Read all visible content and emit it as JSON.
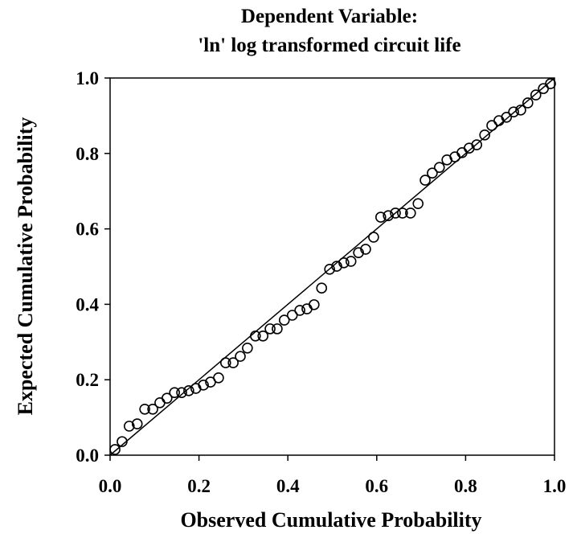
{
  "chart_data": {
    "type": "scatter",
    "title": [
      "Dependent Variable:",
      "'ln' log transformed circuit life"
    ],
    "x_label": "Observed Cumulative Probability",
    "y_label": "Expected Cumulative Probability",
    "xlim": [
      0,
      1
    ],
    "ylim": [
      0,
      1
    ],
    "xticks": [
      {
        "value": 0,
        "label": "0.0"
      },
      0.2,
      0.4,
      0.6,
      0.8,
      {
        "value": 1,
        "label": "1.0"
      }
    ],
    "yticks": [
      {
        "value": 0,
        "label": "0.0"
      },
      0.2,
      0.4,
      0.6,
      0.8,
      {
        "value": 1,
        "label": "1.0"
      }
    ],
    "grid": false,
    "reference_line": true,
    "series": [
      {
        "color": "#000000",
        "x": [
          0.011,
          0.027,
          0.043,
          0.061,
          0.078,
          0.096,
          0.112,
          0.128,
          0.145,
          0.161,
          0.177,
          0.193,
          0.21,
          0.226,
          0.244,
          0.26,
          0.277,
          0.293,
          0.309,
          0.327,
          0.344,
          0.36,
          0.376,
          0.392,
          0.41,
          0.427,
          0.443,
          0.459,
          0.476,
          0.494,
          0.51,
          0.526,
          0.542,
          0.559,
          0.575,
          0.593,
          0.609,
          0.626,
          0.642,
          0.658,
          0.676,
          0.693,
          0.709,
          0.725,
          0.741,
          0.758,
          0.776,
          0.792,
          0.808,
          0.825,
          0.843,
          0.859,
          0.875,
          0.892,
          0.908,
          0.924,
          0.94,
          0.958,
          0.975,
          0.991
        ],
        "values": [
          0.015,
          0.036,
          0.077,
          0.083,
          0.122,
          0.122,
          0.139,
          0.151,
          0.166,
          0.166,
          0.171,
          0.177,
          0.186,
          0.194,
          0.205,
          0.245,
          0.245,
          0.262,
          0.284,
          0.316,
          0.316,
          0.335,
          0.335,
          0.358,
          0.371,
          0.384,
          0.388,
          0.399,
          0.443,
          0.493,
          0.501,
          0.51,
          0.514,
          0.537,
          0.546,
          0.578,
          0.631,
          0.635,
          0.642,
          0.642,
          0.642,
          0.667,
          0.729,
          0.748,
          0.763,
          0.783,
          0.791,
          0.802,
          0.814,
          0.823,
          0.849,
          0.874,
          0.887,
          0.896,
          0.91,
          0.915,
          0.934,
          0.955,
          0.972,
          0.985
        ]
      }
    ]
  }
}
